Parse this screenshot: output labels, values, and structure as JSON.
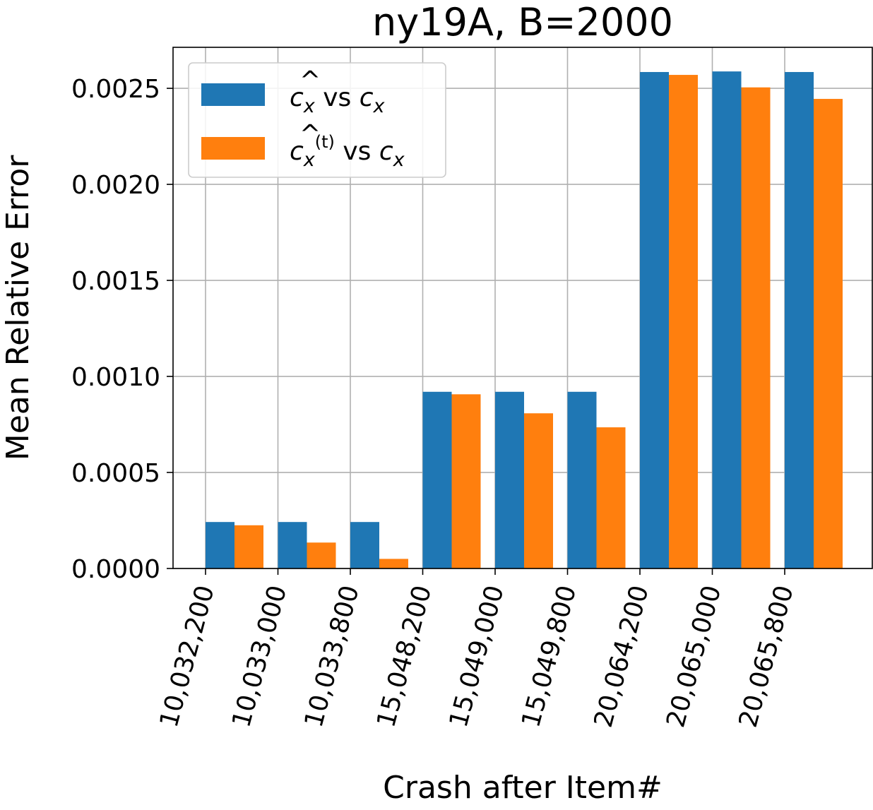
{
  "chart_data": {
    "type": "bar",
    "title": "ny19A, B=2000",
    "xlabel": "Crash after Item#",
    "ylabel": "Mean Relative Error",
    "categories": [
      "10,032,200",
      "10,033,000",
      "10,033,800",
      "15,048,200",
      "15,049,000",
      "15,049,800",
      "20,064,200",
      "20,065,000",
      "20,065,800"
    ],
    "series": [
      {
        "name": "ĉx vs cx",
        "color": "#1f77b4",
        "values": [
          0.000242,
          0.000242,
          0.000242,
          0.00092,
          0.00092,
          0.00092,
          0.002585,
          0.002588,
          0.002585
        ]
      },
      {
        "name": "ĉx(t) vs cx",
        "color": "#ff7f0e",
        "values": [
          0.000225,
          0.000135,
          5e-05,
          0.000907,
          0.000808,
          0.000735,
          0.00257,
          0.002505,
          0.002445
        ]
      }
    ],
    "ylim": [
      0,
      0.0027136
    ],
    "yticks": [
      "0.0000",
      "0.0005",
      "0.0010",
      "0.0015",
      "0.0020",
      "0.0025"
    ],
    "ytick_values": [
      0,
      0.0005,
      0.001,
      0.0015,
      0.002,
      0.0025
    ],
    "grid": true,
    "legend_position": "top-left"
  },
  "legend": {
    "series0_base": "c",
    "series0_hat": "^",
    "series0_sub": "x",
    "series0_vs": " vs ",
    "series0_rhs": "c",
    "series0_rhs_sub": "x",
    "series1_base": "c",
    "series1_hat": "^",
    "series1_sub": "x",
    "series1_sup": "(t)",
    "series1_vs": " vs ",
    "series1_rhs": "c",
    "series1_rhs_sub": "x"
  }
}
